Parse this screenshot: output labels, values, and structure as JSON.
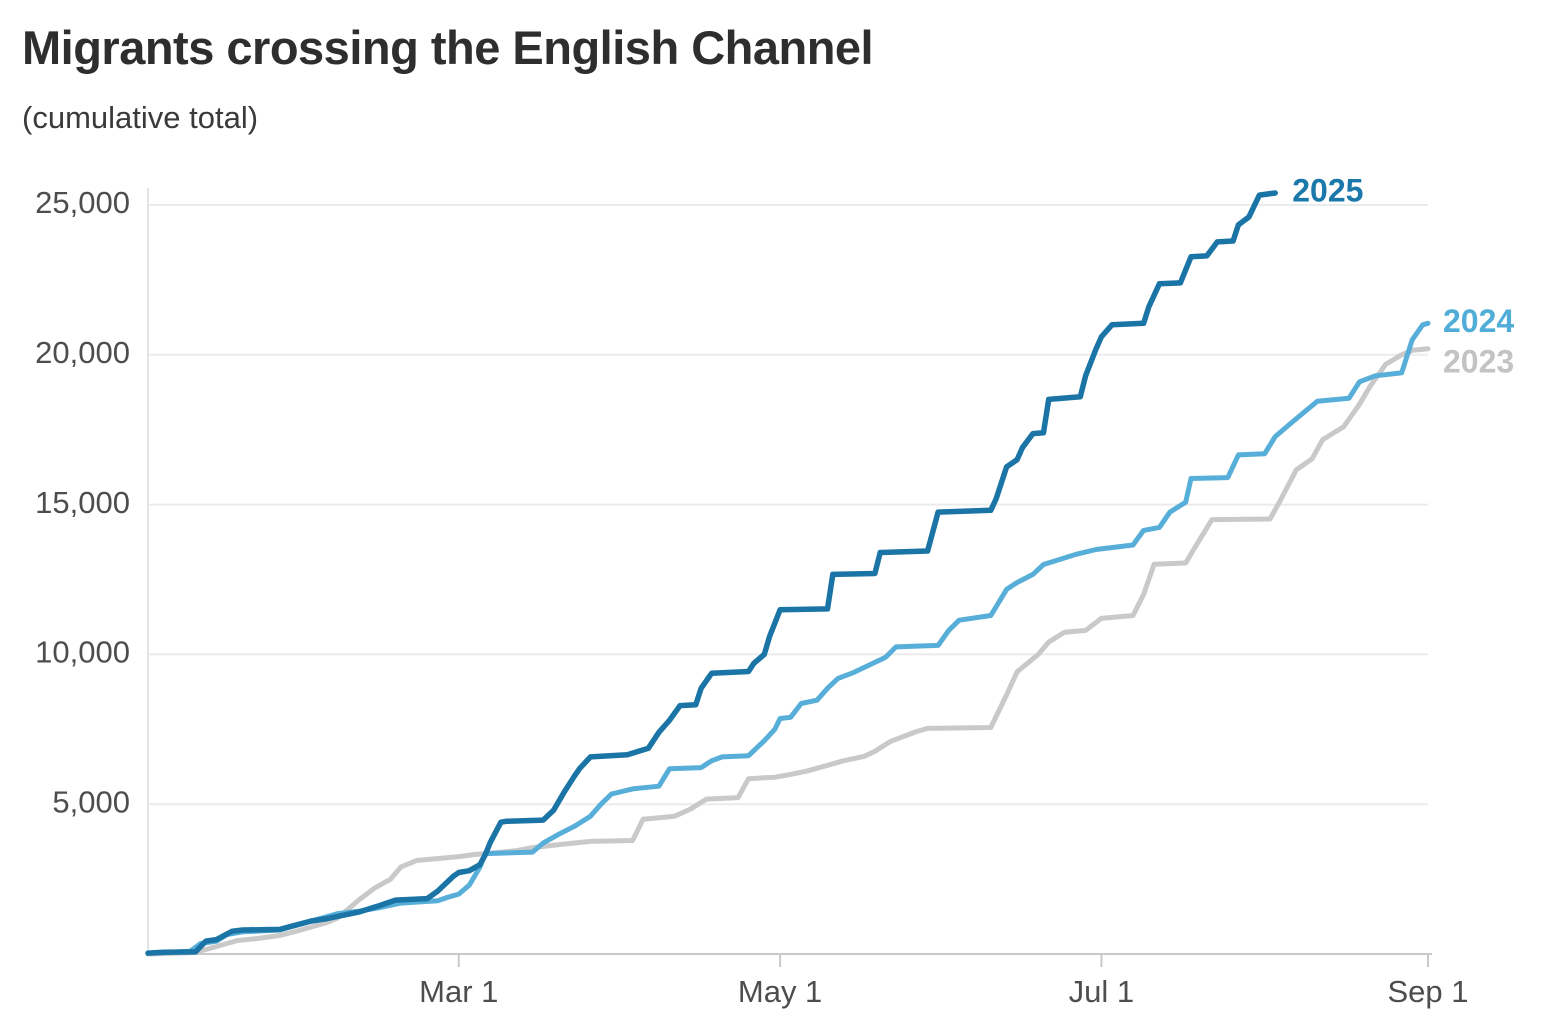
{
  "header": {
    "title": "Migrants crossing the English Channel",
    "subtitle": "(cumulative total)"
  },
  "chart_data": {
    "type": "line",
    "title": "Migrants crossing the English Channel",
    "subtitle": "(cumulative total)",
    "grid": "horizontal-only",
    "legend_position": "line-end-labels",
    "x_axis": {
      "unit": "day-of-year",
      "range_days": [
        0,
        243
      ],
      "tick_days": [
        59,
        120,
        181,
        243
      ],
      "tick_labels": [
        "Mar 1",
        "May 1",
        "Jul 1",
        "Sep 1"
      ]
    },
    "y_axis": {
      "range": [
        0,
        25000
      ],
      "tick_values": [
        5000,
        10000,
        15000,
        20000,
        25000
      ],
      "tick_labels": [
        "5,000",
        "10,000",
        "15,000",
        "20,000",
        "25,000"
      ]
    },
    "series": [
      {
        "name": "2023",
        "color": "#c9c9c9",
        "label_color": "#c3c3c3",
        "stroke_width": 5,
        "label_anchor": {
          "day": 243,
          "value": 20200
        },
        "points": [
          [
            0,
            0
          ],
          [
            8,
            40
          ],
          [
            11,
            150
          ],
          [
            14,
            300
          ],
          [
            17,
            450
          ],
          [
            21,
            520
          ],
          [
            25,
            620
          ],
          [
            28,
            750
          ],
          [
            31,
            900
          ],
          [
            34,
            1050
          ],
          [
            36,
            1200
          ],
          [
            40,
            1800
          ],
          [
            43,
            2200
          ],
          [
            46,
            2490
          ],
          [
            48,
            2900
          ],
          [
            51,
            3120
          ],
          [
            59,
            3250
          ],
          [
            62,
            3320
          ],
          [
            66,
            3380
          ],
          [
            70,
            3450
          ],
          [
            73,
            3550
          ],
          [
            78,
            3650
          ],
          [
            84,
            3760
          ],
          [
            92,
            3790
          ],
          [
            94,
            4500
          ],
          [
            100,
            4600
          ],
          [
            103,
            4840
          ],
          [
            106,
            5170
          ],
          [
            112,
            5220
          ],
          [
            114,
            5850
          ],
          [
            119,
            5900
          ],
          [
            121,
            5960
          ],
          [
            125,
            6100
          ],
          [
            128,
            6250
          ],
          [
            132,
            6450
          ],
          [
            136,
            6600
          ],
          [
            138,
            6770
          ],
          [
            141,
            7100
          ],
          [
            146,
            7430
          ],
          [
            148,
            7530
          ],
          [
            160,
            7560
          ],
          [
            163,
            8650
          ],
          [
            165,
            9420
          ],
          [
            169,
            10000
          ],
          [
            171,
            10410
          ],
          [
            174,
            10740
          ],
          [
            178,
            10800
          ],
          [
            181,
            11200
          ],
          [
            187,
            11300
          ],
          [
            189,
            12000
          ],
          [
            191,
            13010
          ],
          [
            197,
            13050
          ],
          [
            199,
            13640
          ],
          [
            202,
            14500
          ],
          [
            213,
            14520
          ],
          [
            215,
            15150
          ],
          [
            218,
            16160
          ],
          [
            221,
            16530
          ],
          [
            223,
            17170
          ],
          [
            227,
            17600
          ],
          [
            230,
            18350
          ],
          [
            232,
            18950
          ],
          [
            235,
            19690
          ],
          [
            238,
            20000
          ],
          [
            240,
            20150
          ],
          [
            243,
            20200
          ]
        ]
      },
      {
        "name": "2024",
        "color": "#57aed8",
        "label_color": "#4fadd8",
        "stroke_width": 5,
        "label_anchor": {
          "day": 243,
          "value": 21050
        },
        "points": [
          [
            0,
            20
          ],
          [
            8,
            90
          ],
          [
            10,
            350
          ],
          [
            13,
            430
          ],
          [
            15,
            650
          ],
          [
            18,
            740
          ],
          [
            25,
            800
          ],
          [
            28,
            950
          ],
          [
            31,
            1100
          ],
          [
            36,
            1350
          ],
          [
            40,
            1430
          ],
          [
            44,
            1550
          ],
          [
            48,
            1700
          ],
          [
            55,
            1780
          ],
          [
            57,
            1900
          ],
          [
            59,
            2000
          ],
          [
            61,
            2300
          ],
          [
            63,
            2900
          ],
          [
            64,
            3350
          ],
          [
            73,
            3400
          ],
          [
            75,
            3700
          ],
          [
            78,
            4000
          ],
          [
            81,
            4270
          ],
          [
            84,
            4600
          ],
          [
            86,
            5000
          ],
          [
            88,
            5340
          ],
          [
            92,
            5510
          ],
          [
            97,
            5600
          ],
          [
            99,
            6180
          ],
          [
            105,
            6220
          ],
          [
            107,
            6450
          ],
          [
            109,
            6580
          ],
          [
            114,
            6620
          ],
          [
            117,
            7120
          ],
          [
            119,
            7500
          ],
          [
            120,
            7860
          ],
          [
            122,
            7900
          ],
          [
            124,
            8360
          ],
          [
            127,
            8470
          ],
          [
            129,
            8870
          ],
          [
            131,
            9200
          ],
          [
            134,
            9400
          ],
          [
            137,
            9650
          ],
          [
            140,
            9900
          ],
          [
            142,
            10250
          ],
          [
            150,
            10300
          ],
          [
            152,
            10800
          ],
          [
            154,
            11140
          ],
          [
            160,
            11300
          ],
          [
            163,
            12170
          ],
          [
            165,
            12400
          ],
          [
            168,
            12670
          ],
          [
            170,
            13000
          ],
          [
            176,
            13330
          ],
          [
            180,
            13500
          ],
          [
            187,
            13650
          ],
          [
            189,
            14140
          ],
          [
            192,
            14240
          ],
          [
            194,
            14750
          ],
          [
            197,
            15080
          ],
          [
            198,
            15870
          ],
          [
            205,
            15900
          ],
          [
            207,
            16660
          ],
          [
            212,
            16700
          ],
          [
            214,
            17270
          ],
          [
            217,
            17720
          ],
          [
            222,
            18450
          ],
          [
            228,
            18550
          ],
          [
            230,
            19100
          ],
          [
            233,
            19300
          ],
          [
            238,
            19400
          ],
          [
            240,
            20500
          ],
          [
            242,
            21000
          ],
          [
            243,
            21050
          ]
        ]
      },
      {
        "name": "2025",
        "color": "#1b74a6",
        "label_color": "#1b78ab",
        "stroke_width": 5.5,
        "label_anchor": {
          "day": 214,
          "value": 25400
        },
        "points": [
          [
            0,
            30
          ],
          [
            3,
            60
          ],
          [
            9,
            70
          ],
          [
            10,
            250
          ],
          [
            11,
            430
          ],
          [
            13,
            480
          ],
          [
            16,
            760
          ],
          [
            18,
            800
          ],
          [
            25,
            820
          ],
          [
            28,
            960
          ],
          [
            31,
            1100
          ],
          [
            34,
            1180
          ],
          [
            40,
            1400
          ],
          [
            44,
            1620
          ],
          [
            47,
            1800
          ],
          [
            53,
            1850
          ],
          [
            55,
            2100
          ],
          [
            58,
            2600
          ],
          [
            59,
            2720
          ],
          [
            61,
            2780
          ],
          [
            63,
            2980
          ],
          [
            64,
            3300
          ],
          [
            65,
            3730
          ],
          [
            67,
            4400
          ],
          [
            68,
            4430
          ],
          [
            75,
            4470
          ],
          [
            77,
            4800
          ],
          [
            79,
            5400
          ],
          [
            81,
            5950
          ],
          [
            82,
            6200
          ],
          [
            84,
            6580
          ],
          [
            91,
            6650
          ],
          [
            95,
            6870
          ],
          [
            97,
            7400
          ],
          [
            99,
            7800
          ],
          [
            101,
            8290
          ],
          [
            104,
            8320
          ],
          [
            105,
            8870
          ],
          [
            107,
            9370
          ],
          [
            114,
            9430
          ],
          [
            115,
            9700
          ],
          [
            117,
            10000
          ],
          [
            118,
            10600
          ],
          [
            120,
            11490
          ],
          [
            129,
            11520
          ],
          [
            130,
            12670
          ],
          [
            138,
            12700
          ],
          [
            139,
            13400
          ],
          [
            148,
            13450
          ],
          [
            150,
            14750
          ],
          [
            160,
            14810
          ],
          [
            161,
            15190
          ],
          [
            163,
            16260
          ],
          [
            165,
            16500
          ],
          [
            166,
            16900
          ],
          [
            168,
            17370
          ],
          [
            170,
            17400
          ],
          [
            171,
            18510
          ],
          [
            177,
            18600
          ],
          [
            178,
            19300
          ],
          [
            180,
            20200
          ],
          [
            181,
            20600
          ],
          [
            183,
            21000
          ],
          [
            189,
            21050
          ],
          [
            190,
            21600
          ],
          [
            192,
            22370
          ],
          [
            196,
            22400
          ],
          [
            198,
            23270
          ],
          [
            201,
            23300
          ],
          [
            203,
            23770
          ],
          [
            206,
            23800
          ],
          [
            207,
            24340
          ],
          [
            209,
            24600
          ],
          [
            211,
            25330
          ],
          [
            214,
            25400
          ]
        ]
      }
    ]
  }
}
